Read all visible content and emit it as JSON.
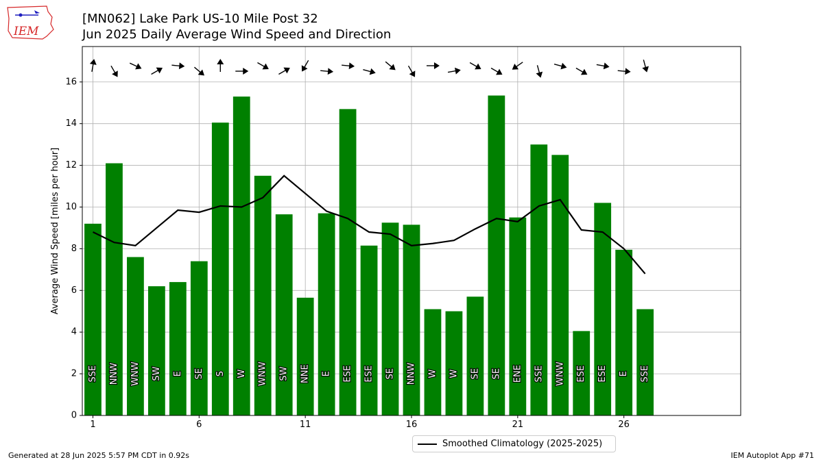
{
  "header": {
    "title_line1": "[MN062] Lake Park US-10 Mile Post 32",
    "title_line2": "Jun 2025 Daily Average Wind Speed and Direction",
    "logo_text": "IEM"
  },
  "footer": {
    "left": "Generated at 28 Jun 2025 5:57 PM CDT in 0.92s",
    "right": "IEM Autoplot App #71"
  },
  "colors": {
    "bar": "#008000",
    "line": "#000000",
    "grid": "#b0b0b0",
    "logo": "#d62728",
    "logo_accent": "#1f1fbf"
  },
  "chart_data": {
    "type": "bar",
    "title": "[MN062] Lake Park US-10 Mile Post 32",
    "subtitle": "Jun 2025 Daily Average Wind Speed and Direction",
    "xlabel": "",
    "ylabel": "Average Wind Speed [miles per hour]",
    "ylim": [
      0,
      17.7
    ],
    "xlim": [
      0.5,
      31.5
    ],
    "x_ticks": [
      1,
      6,
      11,
      16,
      21,
      26
    ],
    "y_ticks": [
      0,
      2,
      4,
      6,
      8,
      10,
      12,
      14,
      16
    ],
    "grid": true,
    "legend_position": "bottom-center",
    "days": [
      1,
      2,
      3,
      4,
      5,
      6,
      7,
      8,
      9,
      10,
      11,
      12,
      13,
      14,
      15,
      16,
      17,
      18,
      19,
      20,
      21,
      22,
      23,
      24,
      25,
      26,
      27
    ],
    "values": [
      9.2,
      12.1,
      7.6,
      6.2,
      6.4,
      7.4,
      14.05,
      15.3,
      11.5,
      9.65,
      5.65,
      9.7,
      14.7,
      8.15,
      9.25,
      9.15,
      5.1,
      5.0,
      5.7,
      15.35,
      9.5,
      13.0,
      12.5,
      4.05,
      10.2,
      7.95,
      5.1
    ],
    "directions": [
      "SSE",
      "NNW",
      "WNW",
      "SW",
      "E",
      "SE",
      "S",
      "W",
      "WNW",
      "SW",
      "NNE",
      "E",
      "ESE",
      "ESE",
      "SE",
      "NNW",
      "W",
      "W",
      "SE",
      "SE",
      "ENE",
      "SSE",
      "WNW",
      "ESE",
      "ESE",
      "E",
      "SSE"
    ],
    "series": [
      {
        "name": "Smoothed Climatology (2025-2025)",
        "x": [
          1,
          2,
          3,
          4,
          5,
          6,
          7,
          8,
          9,
          10,
          11,
          12,
          13,
          14,
          15,
          16,
          17,
          18,
          19,
          20,
          21,
          22,
          23,
          24,
          25,
          26,
          27
        ],
        "values": [
          8.8,
          8.3,
          8.15,
          9.0,
          9.85,
          9.75,
          10.05,
          10.0,
          10.45,
          11.5,
          10.65,
          9.8,
          9.45,
          8.8,
          8.7,
          8.15,
          8.25,
          8.4,
          8.95,
          9.45,
          9.3,
          10.05,
          10.35,
          8.9,
          8.8,
          8.0,
          6.8
        ]
      }
    ],
    "arrow_bearings_deg": [
      10,
      150,
      115,
      60,
      95,
      130,
      0,
      90,
      120,
      60,
      210,
      95,
      95,
      105,
      130,
      150,
      90,
      80,
      120,
      120,
      235,
      165,
      105,
      120,
      100,
      95,
      165
    ]
  }
}
